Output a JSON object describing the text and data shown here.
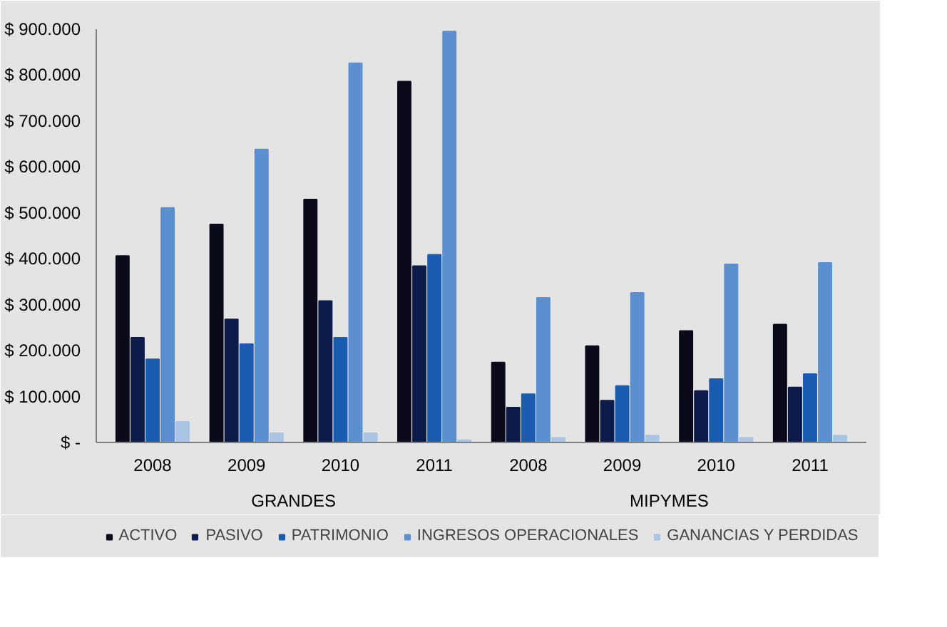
{
  "chart_data": {
    "type": "bar",
    "categories": [
      "2008",
      "2009",
      "2010",
      "2011",
      "2008",
      "2009",
      "2010",
      "2011"
    ],
    "series": [
      {
        "name": "ACTIVO",
        "color": "#0a0a1a",
        "values": [
          406000,
          475000,
          529000,
          786000,
          174000,
          210000,
          243000,
          257000
        ]
      },
      {
        "name": "PASIVO",
        "color": "#0d1b4a",
        "values": [
          228000,
          268000,
          308000,
          384000,
          76000,
          91000,
          112000,
          120000
        ]
      },
      {
        "name": "PATRIMONIO",
        "color": "#1a5cb0",
        "values": [
          181000,
          214000,
          228000,
          409000,
          105000,
          123000,
          138000,
          149000
        ]
      },
      {
        "name": "INGRESOS OPERACIONALES",
        "color": "#5b8fd0",
        "values": [
          511000,
          638000,
          826000,
          895000,
          315000,
          326000,
          388000,
          391000
        ]
      },
      {
        "name": "GANANCIAS Y PERDIDAS",
        "color": "#a9c4e4",
        "values": [
          45000,
          20000,
          20000,
          5000,
          10000,
          15000,
          10000,
          15000
        ]
      }
    ],
    "ylim": [
      0,
      900000
    ],
    "yticks": [
      {
        "value": 0,
        "label": "$ -"
      },
      {
        "value": 100000,
        "label": "$ 100.000"
      },
      {
        "value": 200000,
        "label": "$ 200.000"
      },
      {
        "value": 300000,
        "label": "$ 300.000"
      },
      {
        "value": 400000,
        "label": "$ 400.000"
      },
      {
        "value": 500000,
        "label": "$ 500.000"
      },
      {
        "value": 600000,
        "label": "$ 600.000"
      },
      {
        "value": 700000,
        "label": "$ 700.000"
      },
      {
        "value": 800000,
        "label": "$ 800.000"
      },
      {
        "value": 900000,
        "label": "$ 900.000"
      }
    ],
    "annotations": [
      "GRANDES",
      "MIPYMES"
    ],
    "grid": false,
    "legend": "bottom"
  }
}
